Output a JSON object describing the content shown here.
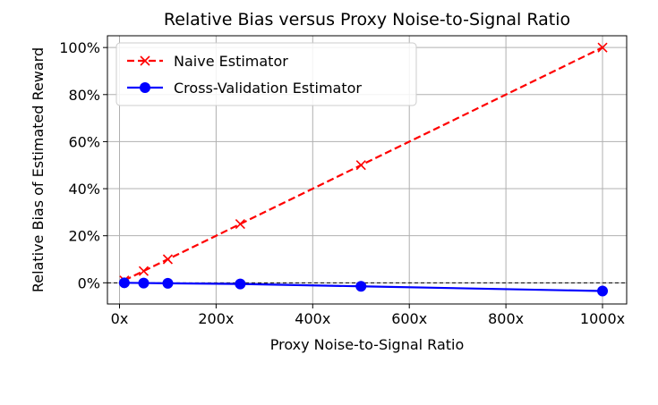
{
  "chart_data": {
    "type": "line",
    "title": "Relative Bias versus Proxy Noise-to-Signal Ratio",
    "xlabel": "Proxy Noise-to-Signal Ratio",
    "ylabel": "Relative Bias of Estimated Reward",
    "xlim": [
      -25,
      1050
    ],
    "ylim": [
      -9,
      105
    ],
    "x_ticks": [
      0,
      200,
      400,
      600,
      800,
      1000
    ],
    "x_tick_labels": [
      "0x",
      "200x",
      "400x",
      "600x",
      "800x",
      "1000x"
    ],
    "y_ticks": [
      0,
      20,
      40,
      60,
      80,
      100
    ],
    "y_tick_labels": [
      "0%",
      "20%",
      "40%",
      "60%",
      "80%",
      "100%"
    ],
    "grid": true,
    "reference_line": {
      "y": 0,
      "style": "dashed",
      "color": "#000000"
    },
    "legend_position": "top-left",
    "series": [
      {
        "name": "Naive Estimator",
        "color": "#ff0000",
        "line_style": "dashed",
        "marker": "x",
        "x": [
          10,
          50,
          100,
          250,
          500,
          1000
        ],
        "y": [
          1,
          5,
          10,
          25,
          50,
          100
        ]
      },
      {
        "name": "Cross-Validation Estimator",
        "color": "#0000ff",
        "line_style": "solid",
        "marker": "circle",
        "x": [
          10,
          50,
          100,
          250,
          500,
          1000
        ],
        "y": [
          0,
          -0.1,
          -0.2,
          -0.5,
          -1.5,
          -3.5
        ]
      }
    ]
  }
}
